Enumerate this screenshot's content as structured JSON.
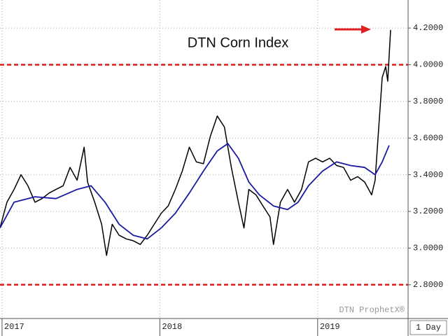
{
  "chart_data": {
    "type": "line",
    "title": "DTN Corn Index",
    "watermark": "DTN ProphetX®",
    "period": "1 Day",
    "xlim": [
      2016.987,
      2019.573
    ],
    "xticks": [
      2017,
      2018,
      2019
    ],
    "ylim": [
      2.616,
      4.353
    ],
    "yticks": [
      {
        "value": 2.8,
        "label": "2.8000"
      },
      {
        "value": 3.0,
        "label": "3.0000"
      },
      {
        "value": 3.2,
        "label": "3.2000"
      },
      {
        "value": 3.4,
        "label": "3.4000"
      },
      {
        "value": 3.6,
        "label": "3.6000"
      },
      {
        "value": 3.8,
        "label": "3.8000"
      },
      {
        "value": 4.0,
        "label": "4.0000"
      },
      {
        "value": 4.2,
        "label": "4.2000"
      }
    ],
    "grid": true,
    "hlines": [
      {
        "value": 4.0,
        "color": "#d42020"
      },
      {
        "value": 2.8,
        "color": "#d42020"
      }
    ],
    "series": [
      {
        "color": "#000000",
        "x": [
          2016.987,
          2017.031,
          2017.076,
          2017.12,
          2017.164,
          2017.209,
          2017.253,
          2017.298,
          2017.342,
          2017.387,
          2017.431,
          2017.476,
          2017.52,
          2017.542,
          2017.587,
          2017.631,
          2017.662,
          2017.698,
          2017.742,
          2017.787,
          2017.831,
          2017.876,
          2017.92,
          2017.964,
          2018.009,
          2018.053,
          2018.098,
          2018.142,
          2018.187,
          2018.231,
          2018.276,
          2018.32,
          2018.364,
          2018.409,
          2018.453,
          2018.498,
          2018.533,
          2018.564,
          2018.609,
          2018.653,
          2018.698,
          2018.72,
          2018.764,
          2018.809,
          2018.853,
          2018.898,
          2018.942,
          2018.987,
          2019.031,
          2019.076,
          2019.12,
          2019.164,
          2019.209,
          2019.253,
          2019.298,
          2019.342,
          2019.364,
          2019.387,
          2019.409,
          2019.431,
          2019.444,
          2019.462
        ],
        "values": [
          3.11,
          3.25,
          3.32,
          3.4,
          3.34,
          3.25,
          3.27,
          3.3,
          3.32,
          3.34,
          3.44,
          3.37,
          3.55,
          3.36,
          3.25,
          3.13,
          2.96,
          3.13,
          3.07,
          3.05,
          3.04,
          3.02,
          3.07,
          3.13,
          3.19,
          3.23,
          3.32,
          3.42,
          3.55,
          3.47,
          3.46,
          3.61,
          3.72,
          3.66,
          3.44,
          3.25,
          3.11,
          3.32,
          3.29,
          3.23,
          3.17,
          3.02,
          3.25,
          3.32,
          3.25,
          3.32,
          3.47,
          3.49,
          3.47,
          3.49,
          3.45,
          3.44,
          3.37,
          3.39,
          3.36,
          3.29,
          3.37,
          3.66,
          3.93,
          3.99,
          3.91,
          4.19
        ]
      },
      {
        "color": "#1a1aa0",
        "x": [
          2016.987,
          2017.076,
          2017.209,
          2017.342,
          2017.476,
          2017.564,
          2017.653,
          2017.742,
          2017.831,
          2017.92,
          2018.009,
          2018.098,
          2018.187,
          2018.276,
          2018.364,
          2018.431,
          2018.498,
          2018.564,
          2018.631,
          2018.72,
          2018.809,
          2018.876,
          2018.942,
          2019.031,
          2019.12,
          2019.209,
          2019.298,
          2019.364,
          2019.409,
          2019.453
        ],
        "values": [
          3.11,
          3.25,
          3.28,
          3.27,
          3.32,
          3.34,
          3.25,
          3.13,
          3.07,
          3.05,
          3.11,
          3.19,
          3.3,
          3.42,
          3.53,
          3.57,
          3.49,
          3.36,
          3.29,
          3.23,
          3.21,
          3.25,
          3.34,
          3.42,
          3.47,
          3.45,
          3.44,
          3.4,
          3.47,
          3.56
        ]
      }
    ]
  }
}
